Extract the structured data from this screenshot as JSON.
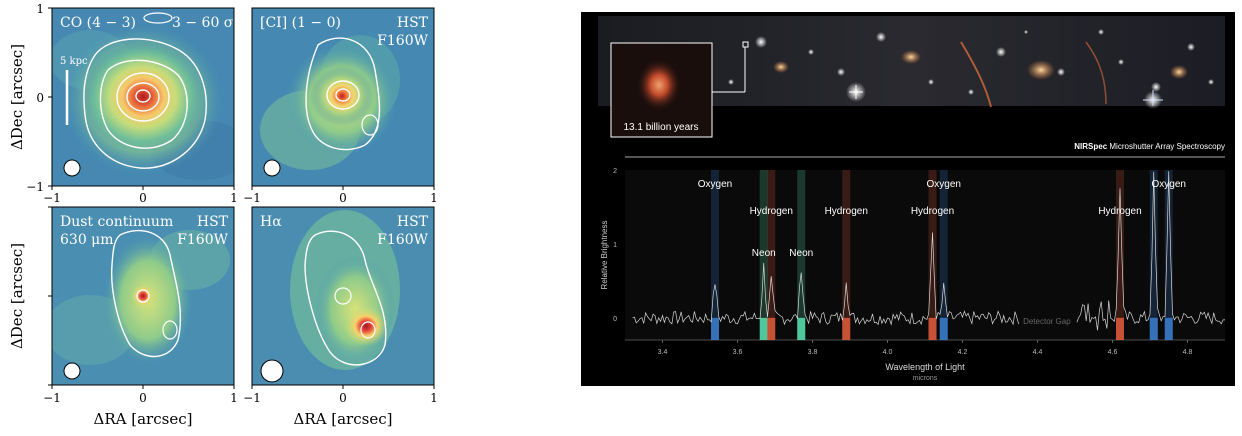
{
  "left_figure": {
    "panels": [
      {
        "id": "co",
        "label": "CO (4 − 3)",
        "sublabel": "3 − 60 σ",
        "sublabel2": "",
        "label_right": "",
        "label_right2": "",
        "scalebar": "5 kpc"
      },
      {
        "id": "ci",
        "label": "[CI] (1 − 0)",
        "sublabel": "",
        "sublabel2": "",
        "label_right": "HST",
        "label_right2": "F160W",
        "scalebar": ""
      },
      {
        "id": "dust",
        "label": "Dust continuum",
        "sublabel": "630 μm",
        "sublabel2": "",
        "label_right": "HST",
        "label_right2": "F160W",
        "scalebar": ""
      },
      {
        "id": "halpha",
        "label": "Hα",
        "sublabel": "",
        "sublabel2": "",
        "label_right": "HST",
        "label_right2": "F160W",
        "scalebar": ""
      }
    ],
    "ylabel": "ΔDec [arcsec]",
    "xlabel": "ΔRA [arcsec]",
    "xticks": [
      "−1",
      "0",
      "1"
    ],
    "yticks": [
      "1",
      "0",
      "−1"
    ]
  },
  "right_figure": {
    "inset_label": "13.1 billion years",
    "title_bold": "NIRSpec",
    "title_rest": " Microshutter Array Spectroscopy",
    "ylabel": "Relative Brightness",
    "xlabel": "Wavelength of Light",
    "xunit": "microns",
    "detector_gap": "Detector Gap",
    "line_labels": [
      {
        "text": "Oxygen",
        "x": 3.54,
        "row": 1
      },
      {
        "text": "Hydrogen",
        "x": 3.69,
        "row": 2
      },
      {
        "text": "Neon",
        "x": 3.67,
        "row": 3
      },
      {
        "text": "Neon",
        "x": 3.77,
        "row": 3
      },
      {
        "text": "Hydrogen",
        "x": 3.89,
        "row": 2
      },
      {
        "text": "Oxygen",
        "x": 4.15,
        "row": 1
      },
      {
        "text": "Hydrogen",
        "x": 4.12,
        "row": 2
      },
      {
        "text": "Hydrogen",
        "x": 4.62,
        "row": 2
      },
      {
        "text": "Oxygen",
        "x": 4.75,
        "row": 1
      }
    ]
  },
  "chart_data": {
    "type": "line",
    "xlabel": "Wavelength of Light",
    "ylabel": "Relative Brightness",
    "xlim": [
      3.3,
      4.9
    ],
    "ylim": [
      -0.3,
      2.0
    ],
    "xticks": [
      3.4,
      3.6,
      3.8,
      4.0,
      4.2,
      4.4,
      4.6,
      4.8
    ],
    "yticks": [
      0,
      1,
      2
    ],
    "lines": [
      {
        "element": "Oxygen",
        "x": 3.54,
        "y": 0.5,
        "color": "#3a7fd0"
      },
      {
        "element": "Neon",
        "x": 3.67,
        "y": 0.7,
        "color": "#58e0b0"
      },
      {
        "element": "Hydrogen",
        "x": 3.69,
        "y": 0.5,
        "color": "#e05a3a"
      },
      {
        "element": "Neon",
        "x": 3.77,
        "y": 0.7,
        "color": "#58e0b0"
      },
      {
        "element": "Hydrogen",
        "x": 3.89,
        "y": 0.55,
        "color": "#e05a3a"
      },
      {
        "element": "Hydrogen",
        "x": 4.12,
        "y": 1.15,
        "color": "#e05a3a"
      },
      {
        "element": "Oxygen",
        "x": 4.15,
        "y": 0.4,
        "color": "#3a7fd0"
      },
      {
        "element": "Hydrogen",
        "x": 4.62,
        "y": 1.8,
        "color": "#e05a3a"
      },
      {
        "element": "Oxygen",
        "x": 4.71,
        "y": 1.9,
        "color": "#3a7fd0"
      },
      {
        "element": "Oxygen",
        "x": 4.75,
        "y": 1.9,
        "color": "#3a7fd0"
      }
    ],
    "detector_gap": [
      4.35,
      4.5
    ],
    "colors": {
      "hydrogen": "#e05a3a",
      "oxygen": "#3a7fd0",
      "neon": "#58e0b0"
    }
  }
}
